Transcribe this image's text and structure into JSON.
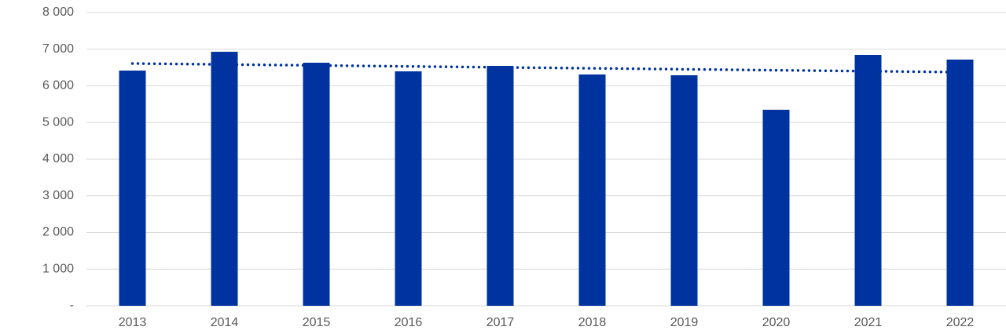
{
  "chart_data": {
    "type": "bar",
    "categories": [
      "2013",
      "2014",
      "2015",
      "2016",
      "2017",
      "2018",
      "2019",
      "2020",
      "2021",
      "2022"
    ],
    "values": [
      6417,
      6930,
      6631,
      6396,
      6545,
      6310,
      6289,
      5348,
      6845,
      6717
    ],
    "color": "#0033a0",
    "trendline": {
      "color": "#0033a0",
      "values": [
        6610,
        6374
      ]
    },
    "ylim": [
      0,
      8000
    ],
    "yticks": [
      {
        "value": 0,
        "label": "-"
      },
      {
        "value": 1000,
        "label": "1 000"
      },
      {
        "value": 2000,
        "label": "2 000"
      },
      {
        "value": 3000,
        "label": "3 000"
      },
      {
        "value": 4000,
        "label": "4 000"
      },
      {
        "value": 5000,
        "label": "5 000"
      },
      {
        "value": 6000,
        "label": "6 000"
      },
      {
        "value": 7000,
        "label": "7 000"
      },
      {
        "value": 8000,
        "label": "8 000"
      }
    ],
    "grid": true
  }
}
